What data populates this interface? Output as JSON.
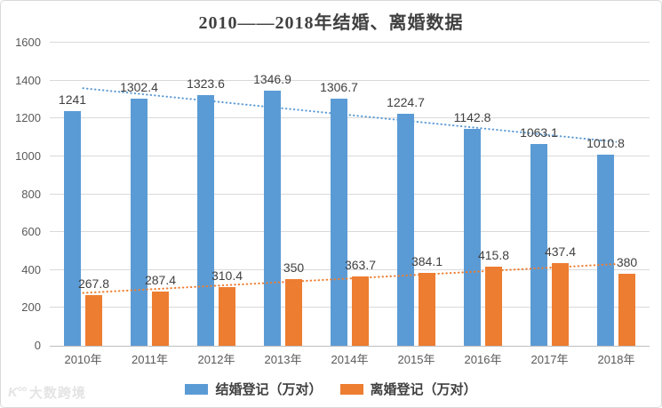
{
  "title": "2010——2018年结婚、离婚数据",
  "watermark": {
    "logo": "K°°",
    "text": "大数跨境"
  },
  "legend": {
    "items": [
      {
        "label": "结婚登记（万对）",
        "color": "#5B9BD5"
      },
      {
        "label": "离婚登记（万对）",
        "color": "#ED7D31"
      }
    ]
  },
  "chart_data": {
    "type": "bar",
    "title": "2010——2018年结婚、离婚数据",
    "categories": [
      "2010年",
      "2011年",
      "2012年",
      "2013年",
      "2014年",
      "2015年",
      "2016年",
      "2017年",
      "2018年"
    ],
    "series": [
      {
        "name": "结婚登记（万对）",
        "color": "#5B9BD5",
        "values": [
          1241,
          1302.4,
          1323.6,
          1346.9,
          1306.7,
          1224.7,
          1142.8,
          1063.1,
          1010.8
        ]
      },
      {
        "name": "离婚登记（万对）",
        "color": "#ED7D31",
        "values": [
          267.8,
          287.4,
          310.4,
          350,
          363.7,
          384.1,
          415.8,
          437.4,
          380
        ]
      }
    ],
    "trendlines": [
      {
        "series": "结婚登记（万对）",
        "color": "#5B9BD5",
        "style": "dotted",
        "start": 1359.5,
        "end": 1076.5
      },
      {
        "series": "离婚登记（万对）",
        "color": "#ED7D31",
        "style": "dotted",
        "start": 278.9,
        "end": 431.4
      }
    ],
    "ylim": [
      0,
      1600
    ],
    "ytick_step": 200,
    "grid": true,
    "legend_position": "bottom",
    "colors": {
      "gridline": "#d9d9d9",
      "axisline": "#bfbfbf",
      "tick_text": "#595959",
      "data_label": "#404040"
    }
  }
}
